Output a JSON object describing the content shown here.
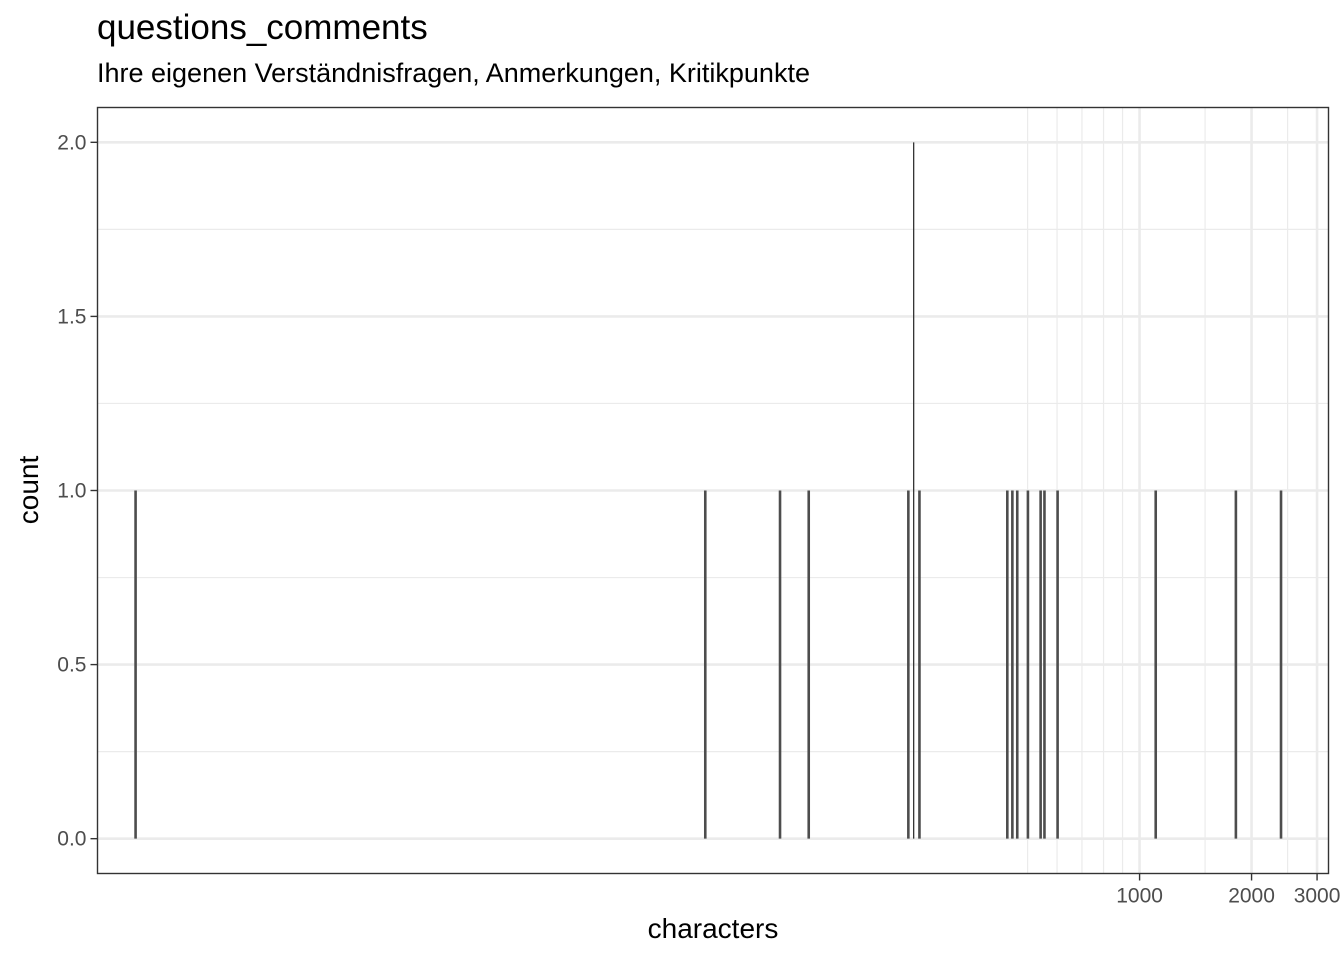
{
  "chart_data": {
    "type": "bar",
    "title": "questions_comments",
    "subtitle": "Ihre eigenen Verständnisfragen, Anmerkungen, Kritikpunkte",
    "xlabel": "characters",
    "ylabel": "count",
    "x_scale": "log10",
    "x_range": [
      1.58,
      3220
    ],
    "ylim": [
      -0.1,
      2.1
    ],
    "x_major_ticks": [
      1000,
      2000,
      3000
    ],
    "x_minor_grid": [
      500,
      600,
      700,
      800,
      900,
      1500,
      2500
    ],
    "y_ticks": [
      0.0,
      0.5,
      1.0,
      1.5,
      2.0
    ],
    "y_tick_labels": [
      "0.0",
      "0.5",
      "1.0",
      "1.5",
      "2.0"
    ],
    "grid": true,
    "bars": [
      {
        "x": 2,
        "count": 1
      },
      {
        "x": 68,
        "count": 1
      },
      {
        "x": 108,
        "count": 1
      },
      {
        "x": 129,
        "count": 1
      },
      {
        "x": 239,
        "count": 1
      },
      {
        "x": 247,
        "count": 2
      },
      {
        "x": 256,
        "count": 1
      },
      {
        "x": 441,
        "count": 1
      },
      {
        "x": 455,
        "count": 1
      },
      {
        "x": 469,
        "count": 1
      },
      {
        "x": 501,
        "count": 1
      },
      {
        "x": 542,
        "count": 1
      },
      {
        "x": 555,
        "count": 1
      },
      {
        "x": 602,
        "count": 1
      },
      {
        "x": 1105,
        "count": 1
      },
      {
        "x": 1815,
        "count": 1
      },
      {
        "x": 2400,
        "count": 1
      }
    ]
  }
}
